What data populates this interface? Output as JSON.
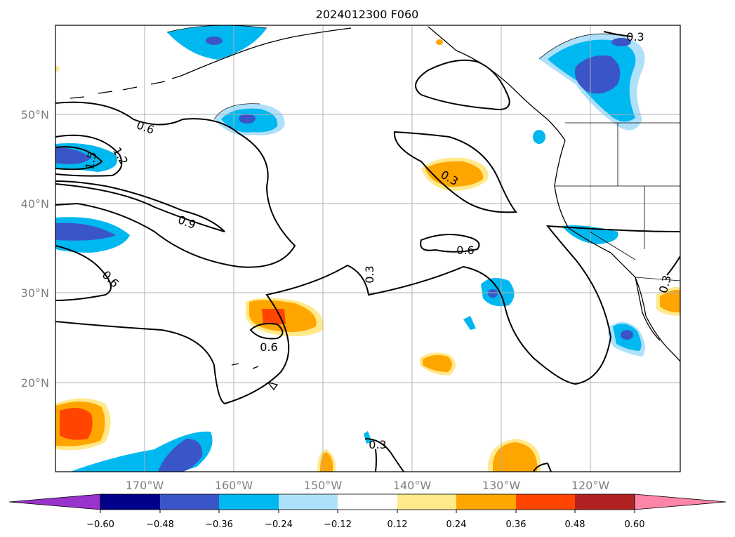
{
  "title": "2024012300 F060",
  "map": {
    "lon_labels": [
      "170°W",
      "160°W",
      "150°W",
      "140°W",
      "130°W",
      "120°W"
    ],
    "lat_labels": [
      "50°N",
      "40°N",
      "30°N",
      "20°N"
    ],
    "contour_labels": [
      "0.6",
      "1.2",
      "1.5",
      "0.9",
      "0.6",
      "0.3",
      "0.3",
      "0.6",
      "0.6",
      "0.3",
      "0.3",
      "0.3"
    ]
  },
  "colorbar": {
    "ticks": [
      "−0.60",
      "−0.48",
      "−0.36",
      "−0.24",
      "−0.12",
      "0.12",
      "0.24",
      "0.36",
      "0.48",
      "0.60"
    ],
    "colors": [
      "#9933cc",
      "#00008b",
      "#3a55c8",
      "#00b8f0",
      "#aee0fa",
      "#ffffff",
      "#ffe98a",
      "#ffa500",
      "#ff4500",
      "#b22222",
      "#ff85a8"
    ]
  }
}
